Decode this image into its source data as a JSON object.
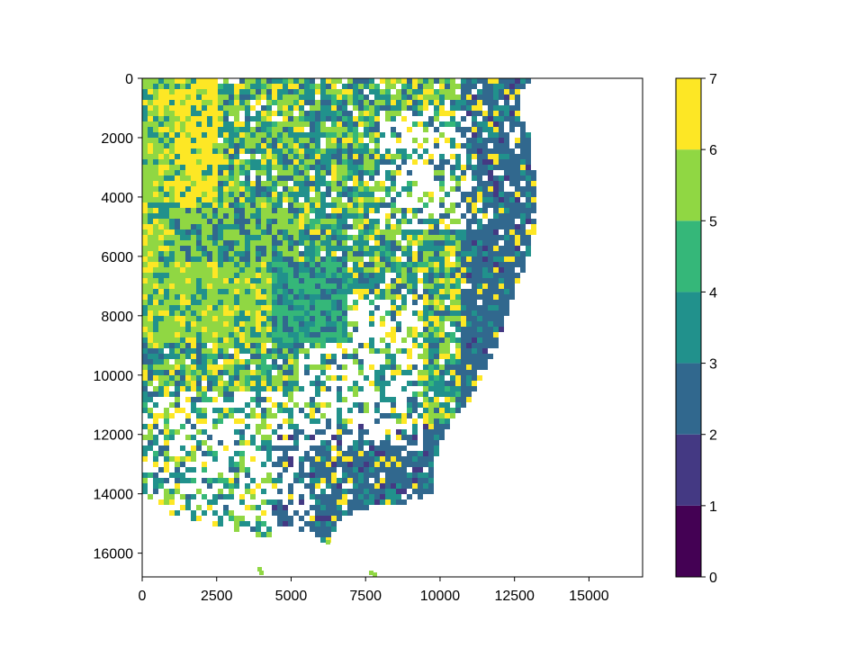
{
  "chart_data": {
    "type": "heatmap",
    "title": "",
    "xlabel": "",
    "ylabel": "",
    "xlim": [
      0,
      16800
    ],
    "ylim": [
      16800,
      0
    ],
    "x_ticks": [
      0,
      2500,
      5000,
      7500,
      10000,
      12500,
      15000
    ],
    "x_tick_labels": [
      "0",
      "2500",
      "5000",
      "7500",
      "10000",
      "12500",
      "15000"
    ],
    "y_ticks": [
      0,
      2000,
      4000,
      6000,
      8000,
      10000,
      12000,
      14000,
      16000
    ],
    "y_tick_labels": [
      "0",
      "2000",
      "4000",
      "6000",
      "8000",
      "10000",
      "12000",
      "14000",
      "16000"
    ],
    "grid": false,
    "colorbar": {
      "orientation": "vertical",
      "placement": "right",
      "range": [
        0,
        7
      ],
      "ticks": [
        0,
        1,
        2,
        3,
        4,
        5,
        6,
        7
      ],
      "tick_labels": [
        "0",
        "1",
        "2",
        "3",
        "4",
        "5",
        "6",
        "7"
      ],
      "bins": [
        {
          "from": 0,
          "to": 1,
          "color": "#440154"
        },
        {
          "from": 1,
          "to": 2,
          "color": "#443983"
        },
        {
          "from": 2,
          "to": 3,
          "color": "#31688e"
        },
        {
          "from": 3,
          "to": 4,
          "color": "#21918c"
        },
        {
          "from": 4,
          "to": 5,
          "color": "#35b779"
        },
        {
          "from": 5,
          "to": 6,
          "color": "#90d743"
        },
        {
          "from": 6,
          "to": 7,
          "color": "#fde725"
        }
      ]
    },
    "colormap": "viridis (discrete, 7 levels)",
    "background_value": "none (white)"
  }
}
